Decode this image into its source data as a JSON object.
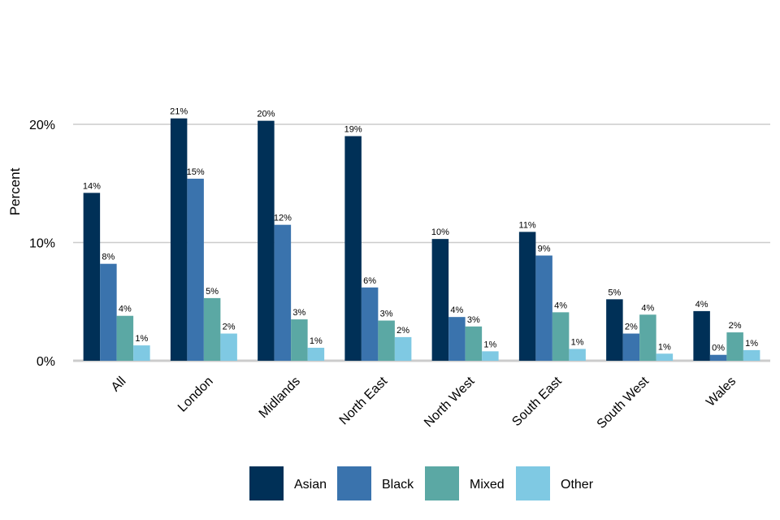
{
  "chart_data": {
    "type": "bar",
    "ylabel": "Percent",
    "xlabel": "",
    "ylim": [
      0,
      22
    ],
    "yticks": [
      0,
      10,
      20
    ],
    "ytick_labels": [
      "0%",
      "10%",
      "20%"
    ],
    "grid": true,
    "legend_position": "bottom",
    "categories": [
      "All",
      "London",
      "Midlands",
      "North East",
      "North West",
      "South East",
      "South West",
      "Wales"
    ],
    "series": [
      {
        "name": "Asian",
        "color": "#003057",
        "values": [
          14.2,
          20.5,
          20.3,
          19.0,
          10.3,
          10.9,
          5.2,
          4.2
        ],
        "labels": [
          "14%",
          "21%",
          "20%",
          "19%",
          "10%",
          "11%",
          "5%",
          "4%"
        ]
      },
      {
        "name": "Black",
        "color": "#3A73AD",
        "values": [
          8.2,
          15.4,
          11.5,
          6.2,
          3.7,
          8.9,
          2.3,
          0.5
        ],
        "labels": [
          "8%",
          "15%",
          "12%",
          "6%",
          "4%",
          "9%",
          "2%",
          "0%"
        ]
      },
      {
        "name": "Mixed",
        "color": "#5BA8A4",
        "values": [
          3.8,
          5.3,
          3.5,
          3.4,
          2.9,
          4.1,
          3.9,
          2.4
        ],
        "labels": [
          "4%",
          "5%",
          "3%",
          "3%",
          "3%",
          "4%",
          "4%",
          "2%"
        ]
      },
      {
        "name": "Other",
        "color": "#7FC9E3",
        "values": [
          1.3,
          2.3,
          1.1,
          2.0,
          0.8,
          1.0,
          0.6,
          0.9
        ],
        "labels": [
          "1%",
          "2%",
          "1%",
          "2%",
          "1%",
          "1%",
          "1%",
          "1%"
        ]
      }
    ]
  }
}
